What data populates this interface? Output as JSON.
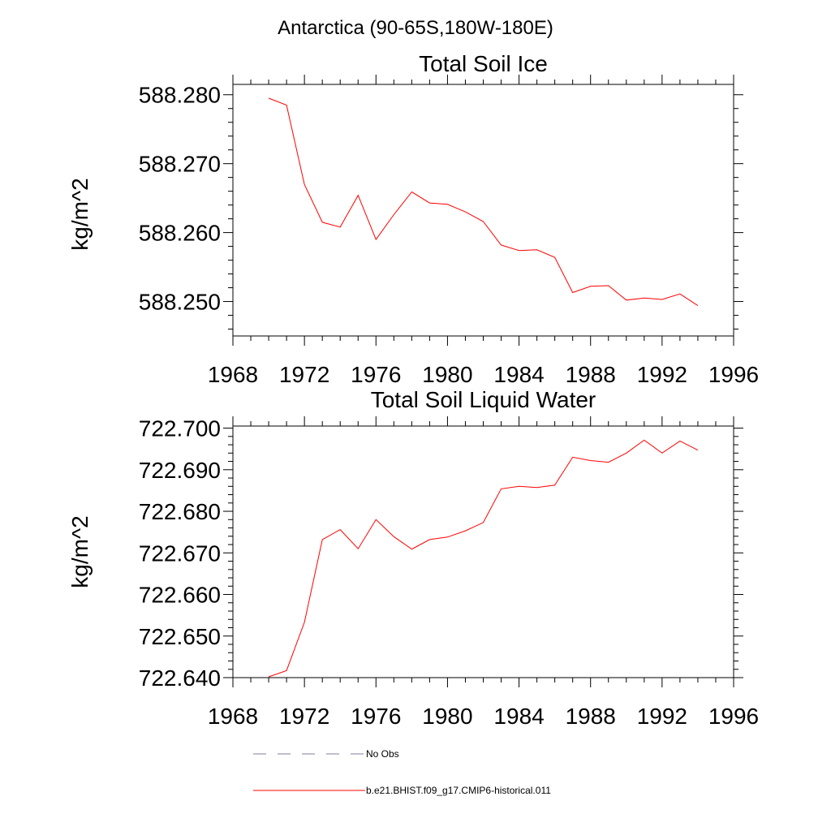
{
  "figure": {
    "title": "Antarctica (90-65S,180W-180E)"
  },
  "chart_data": [
    {
      "type": "line",
      "title": "Total Soil Ice",
      "xlabel": "",
      "ylabel": "kg/m^2",
      "xlim": [
        1968,
        1996
      ],
      "ylim": [
        588.245,
        588.2815
      ],
      "x_ticks": [
        1968,
        1972,
        1976,
        1980,
        1984,
        1988,
        1992,
        1996
      ],
      "x_tick_labels": [
        "1968",
        "1972",
        "1976",
        "1980",
        "1984",
        "1988",
        "1992",
        "1996"
      ],
      "y_ticks": [
        588.25,
        588.26,
        588.27,
        588.28
      ],
      "y_tick_labels": [
        "588.250",
        "588.260",
        "588.270",
        "588.280"
      ],
      "series": [
        {
          "name": "b.e21.BHIST.f09_g17.CMIP6-historical.011",
          "color": "#ff0000",
          "x": [
            1970,
            1971,
            1972,
            1973,
            1974,
            1975,
            1976,
            1977,
            1978,
            1979,
            1980,
            1981,
            1982,
            1983,
            1984,
            1985,
            1986,
            1987,
            1988,
            1989,
            1990,
            1991,
            1992,
            1993,
            1994
          ],
          "values": [
            588.2795,
            588.2785,
            588.267,
            588.2615,
            588.2608,
            588.2654,
            588.259,
            588.2626,
            588.2659,
            588.2643,
            588.2641,
            588.263,
            588.2616,
            588.2582,
            588.2574,
            588.2575,
            588.2564,
            588.2513,
            588.2522,
            588.2523,
            588.2502,
            588.2505,
            588.2503,
            588.2511,
            588.2494
          ]
        }
      ]
    },
    {
      "type": "line",
      "title": "Total Soil Liquid Water",
      "xlabel": "",
      "ylabel": "kg/m^2",
      "xlim": [
        1968,
        1996
      ],
      "ylim": [
        722.64,
        722.7005
      ],
      "x_ticks": [
        1968,
        1972,
        1976,
        1980,
        1984,
        1988,
        1992,
        1996
      ],
      "x_tick_labels": [
        "1968",
        "1972",
        "1976",
        "1980",
        "1984",
        "1988",
        "1992",
        "1996"
      ],
      "y_ticks": [
        722.64,
        722.65,
        722.66,
        722.67,
        722.68,
        722.69,
        722.7
      ],
      "y_tick_labels": [
        "722.640",
        "722.650",
        "722.660",
        "722.670",
        "722.680",
        "722.690",
        "722.700"
      ],
      "series": [
        {
          "name": "b.e21.BHIST.f09_g17.CMIP6-historical.011",
          "color": "#ff0000",
          "x": [
            1970,
            1971,
            1972,
            1973,
            1974,
            1975,
            1976,
            1977,
            1978,
            1979,
            1980,
            1981,
            1982,
            1983,
            1984,
            1985,
            1986,
            1987,
            1988,
            1989,
            1990,
            1991,
            1992,
            1993,
            1994
          ],
          "values": [
            722.6402,
            722.6417,
            722.6533,
            722.6732,
            722.6756,
            722.671,
            722.678,
            722.6739,
            722.6709,
            722.6732,
            722.6738,
            722.6753,
            722.6773,
            722.6854,
            722.686,
            722.6857,
            722.6863,
            722.693,
            722.6922,
            722.6918,
            722.694,
            722.6971,
            722.694,
            722.6969,
            722.6947
          ]
        }
      ]
    }
  ],
  "legend": {
    "placement": "bottom",
    "items": [
      {
        "label": "No Obs",
        "style": "dashed",
        "color": "#7f7f9f"
      },
      {
        "label": "b.e21.BHIST.f09_g17.CMIP6-historical.011",
        "style": "solid",
        "color": "#ff0000"
      }
    ]
  }
}
